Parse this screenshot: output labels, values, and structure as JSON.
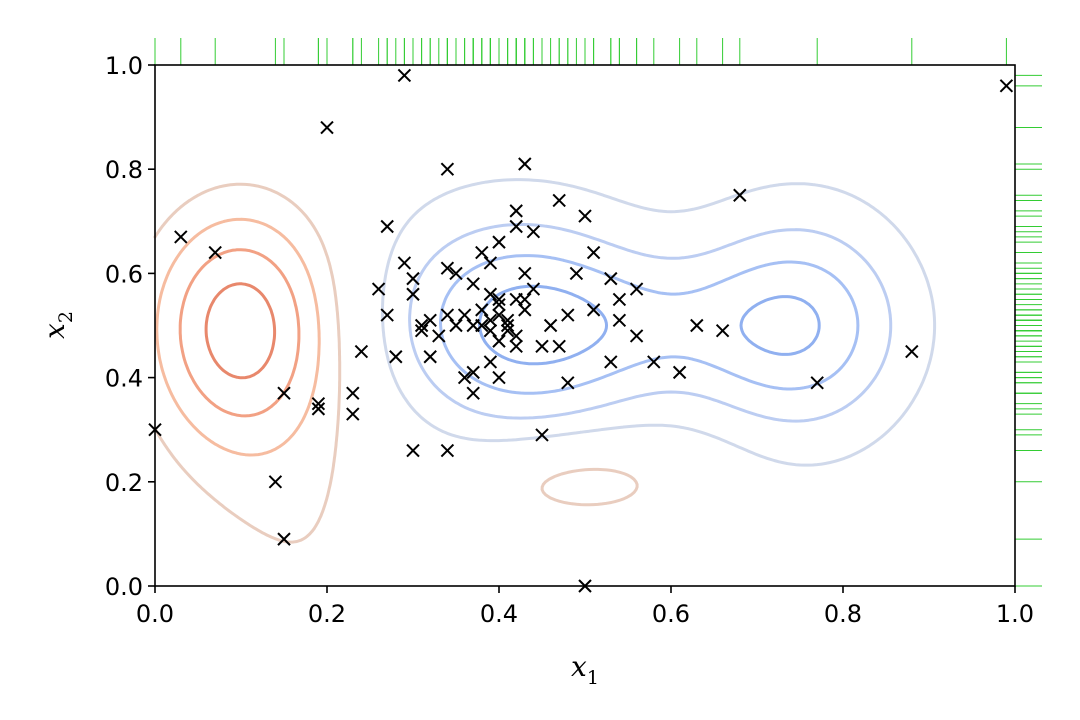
{
  "chart_data": {
    "type": "scatter",
    "xlabel": "x",
    "xlabel_sub": "1",
    "ylabel": "x",
    "ylabel_sub": "2",
    "xlim": [
      0.0,
      1.0
    ],
    "ylim": [
      0.0,
      1.0
    ],
    "xticks": [
      "0.0",
      "0.2",
      "0.4",
      "0.6",
      "0.8",
      "1.0"
    ],
    "yticks": [
      "0.0",
      "0.2",
      "0.4",
      "0.6",
      "0.8",
      "1.0"
    ],
    "grid": false,
    "marker": "x",
    "marker_color": "#000000",
    "rug_color": "#33cc33",
    "rug_positions": [
      "top",
      "right"
    ],
    "contour_colormap": "coolwarm",
    "contour_values": [
      {
        "level": -5,
        "color": "#dc6e5a"
      },
      {
        "level": -4,
        "color": "#e8886c"
      },
      {
        "level": -3,
        "color": "#f2a184"
      },
      {
        "level": -2,
        "color": "#f6bca0"
      },
      {
        "level": -1,
        "color": "#e9cdbf"
      },
      {
        "level": 1,
        "color": "#d0d9eb"
      },
      {
        "level": 2,
        "color": "#bccdf2"
      },
      {
        "level": 3,
        "color": "#a6c0f4"
      },
      {
        "level": 4,
        "color": "#90b0f0"
      }
    ],
    "points": [
      [
        0.0,
        0.3
      ],
      [
        0.03,
        0.67
      ],
      [
        0.07,
        0.64
      ],
      [
        0.14,
        0.2
      ],
      [
        0.15,
        0.09
      ],
      [
        0.15,
        0.37
      ],
      [
        0.19,
        0.35
      ],
      [
        0.19,
        0.34
      ],
      [
        0.2,
        0.88
      ],
      [
        0.23,
        0.37
      ],
      [
        0.23,
        0.33
      ],
      [
        0.24,
        0.45
      ],
      [
        0.26,
        0.57
      ],
      [
        0.27,
        0.69
      ],
      [
        0.27,
        0.52
      ],
      [
        0.28,
        0.44
      ],
      [
        0.29,
        0.98
      ],
      [
        0.29,
        0.62
      ],
      [
        0.3,
        0.26
      ],
      [
        0.3,
        0.59
      ],
      [
        0.3,
        0.56
      ],
      [
        0.31,
        0.5
      ],
      [
        0.31,
        0.49
      ],
      [
        0.32,
        0.44
      ],
      [
        0.32,
        0.51
      ],
      [
        0.33,
        0.48
      ],
      [
        0.34,
        0.8
      ],
      [
        0.34,
        0.26
      ],
      [
        0.34,
        0.61
      ],
      [
        0.34,
        0.52
      ],
      [
        0.35,
        0.5
      ],
      [
        0.35,
        0.6
      ],
      [
        0.36,
        0.52
      ],
      [
        0.36,
        0.4
      ],
      [
        0.37,
        0.37
      ],
      [
        0.37,
        0.41
      ],
      [
        0.37,
        0.5
      ],
      [
        0.37,
        0.58
      ],
      [
        0.38,
        0.5
      ],
      [
        0.38,
        0.64
      ],
      [
        0.38,
        0.53
      ],
      [
        0.39,
        0.51
      ],
      [
        0.39,
        0.43
      ],
      [
        0.39,
        0.56
      ],
      [
        0.39,
        0.49
      ],
      [
        0.39,
        0.62
      ],
      [
        0.4,
        0.55
      ],
      [
        0.4,
        0.54
      ],
      [
        0.4,
        0.66
      ],
      [
        0.4,
        0.47
      ],
      [
        0.4,
        0.4
      ],
      [
        0.4,
        0.52
      ],
      [
        0.41,
        0.51
      ],
      [
        0.41,
        0.49
      ],
      [
        0.41,
        0.5
      ],
      [
        0.42,
        0.48
      ],
      [
        0.42,
        0.72
      ],
      [
        0.42,
        0.69
      ],
      [
        0.42,
        0.55
      ],
      [
        0.42,
        0.46
      ],
      [
        0.43,
        0.81
      ],
      [
        0.43,
        0.6
      ],
      [
        0.43,
        0.53
      ],
      [
        0.43,
        0.55
      ],
      [
        0.44,
        0.57
      ],
      [
        0.44,
        0.68
      ],
      [
        0.45,
        0.46
      ],
      [
        0.45,
        0.29
      ],
      [
        0.46,
        0.5
      ],
      [
        0.47,
        0.46
      ],
      [
        0.47,
        0.74
      ],
      [
        0.48,
        0.52
      ],
      [
        0.48,
        0.39
      ],
      [
        0.49,
        0.6
      ],
      [
        0.5,
        0.71
      ],
      [
        0.5,
        0.0
      ],
      [
        0.51,
        0.53
      ],
      [
        0.51,
        0.64
      ],
      [
        0.53,
        0.43
      ],
      [
        0.53,
        0.59
      ],
      [
        0.54,
        0.51
      ],
      [
        0.54,
        0.55
      ],
      [
        0.56,
        0.57
      ],
      [
        0.56,
        0.48
      ],
      [
        0.58,
        0.43
      ],
      [
        0.61,
        0.41
      ],
      [
        0.63,
        0.5
      ],
      [
        0.66,
        0.49
      ],
      [
        0.68,
        0.75
      ],
      [
        0.77,
        0.39
      ],
      [
        0.88,
        0.45
      ],
      [
        0.99,
        0.96
      ]
    ]
  }
}
